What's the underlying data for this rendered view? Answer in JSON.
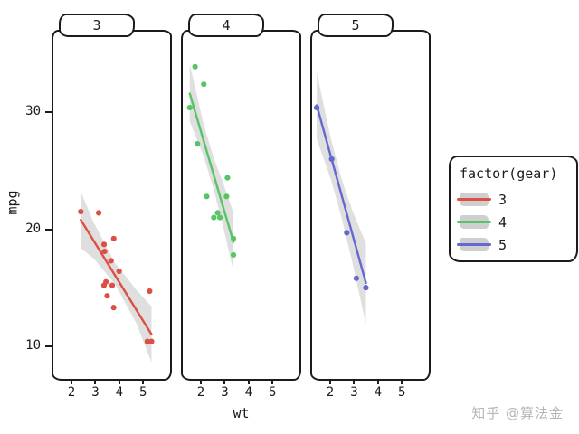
{
  "figure": {
    "background": "#ffffff",
    "x_axis_label": "wt",
    "y_axis_label": "mpg",
    "watermark": "知乎 @算法金"
  },
  "legend": {
    "title": "factor(gear)",
    "band_color": "#c9c9c9",
    "entries": [
      {
        "label": "3",
        "color": "#dd4f44"
      },
      {
        "label": "4",
        "color": "#57c566"
      },
      {
        "label": "5",
        "color": "#6468d0"
      }
    ]
  },
  "chart_data": {
    "type": "scatter",
    "title": "",
    "xlabel": "wt",
    "ylabel": "mpg",
    "xlim": [
      1.32,
      6.2
    ],
    "ylim": [
      7.2,
      36.9
    ],
    "x_ticks": [
      2,
      3,
      4,
      5
    ],
    "y_ticks": [
      10,
      20,
      30
    ],
    "grid": false,
    "legend_position": "right",
    "facet_variable": "factor(gear)",
    "facets": [
      {
        "label": "3",
        "color": "#dd4f44",
        "points": [
          [
            2.465,
            21.5
          ],
          [
            3.215,
            21.4
          ],
          [
            3.44,
            18.7
          ],
          [
            3.46,
            18.1
          ],
          [
            3.435,
            15.2
          ],
          [
            3.52,
            15.5
          ],
          [
            3.57,
            14.3
          ],
          [
            3.73,
            17.3
          ],
          [
            3.78,
            15.2
          ],
          [
            3.84,
            13.3
          ],
          [
            3.845,
            19.2
          ],
          [
            4.07,
            16.4
          ],
          [
            5.25,
            10.4
          ],
          [
            5.345,
            14.7
          ],
          [
            5.424,
            10.4
          ]
        ],
        "trend": {
          "x": [
            2.465,
            5.424
          ],
          "y": [
            20.8,
            11.0
          ]
        },
        "band": [
          [
            2.465,
            18.4,
            23.2
          ],
          [
            3.0,
            17.5,
            20.6
          ],
          [
            3.9,
            15.3,
            17.1
          ],
          [
            4.8,
            11.9,
            14.8
          ],
          [
            5.424,
            8.6,
            13.4
          ]
        ]
      },
      {
        "label": "4",
        "color": "#57c566",
        "points": [
          [
            1.615,
            30.4
          ],
          [
            1.835,
            33.9
          ],
          [
            1.935,
            27.3
          ],
          [
            2.2,
            32.4
          ],
          [
            2.32,
            22.8
          ],
          [
            2.62,
            21.0
          ],
          [
            2.78,
            21.4
          ],
          [
            2.875,
            21.0
          ],
          [
            3.15,
            22.8
          ],
          [
            3.19,
            24.4
          ],
          [
            3.44,
            19.2
          ],
          [
            3.44,
            17.8
          ]
        ],
        "trend": {
          "x": [
            1.615,
            3.44
          ],
          "y": [
            31.6,
            18.9
          ]
        },
        "band": [
          [
            1.615,
            29.2,
            34.1
          ],
          [
            2.2,
            26.2,
            28.9
          ],
          [
            2.6,
            23.5,
            26.2
          ],
          [
            3.0,
            20.3,
            24.0
          ],
          [
            3.44,
            16.4,
            21.4
          ]
        ]
      },
      {
        "label": "5",
        "color": "#6468d0",
        "points": [
          [
            1.513,
            30.4
          ],
          [
            2.14,
            26.0
          ],
          [
            2.77,
            19.7
          ],
          [
            3.17,
            15.8
          ],
          [
            3.57,
            15.0
          ]
        ],
        "trend": {
          "x": [
            1.513,
            3.57
          ],
          "y": [
            30.6,
            15.4
          ]
        },
        "band": [
          [
            1.513,
            27.7,
            33.4
          ],
          [
            2.1,
            24.3,
            27.8
          ],
          [
            2.55,
            21.0,
            24.3
          ],
          [
            3.0,
            17.2,
            21.6
          ],
          [
            3.57,
            11.9,
            18.8
          ]
        ]
      }
    ]
  }
}
